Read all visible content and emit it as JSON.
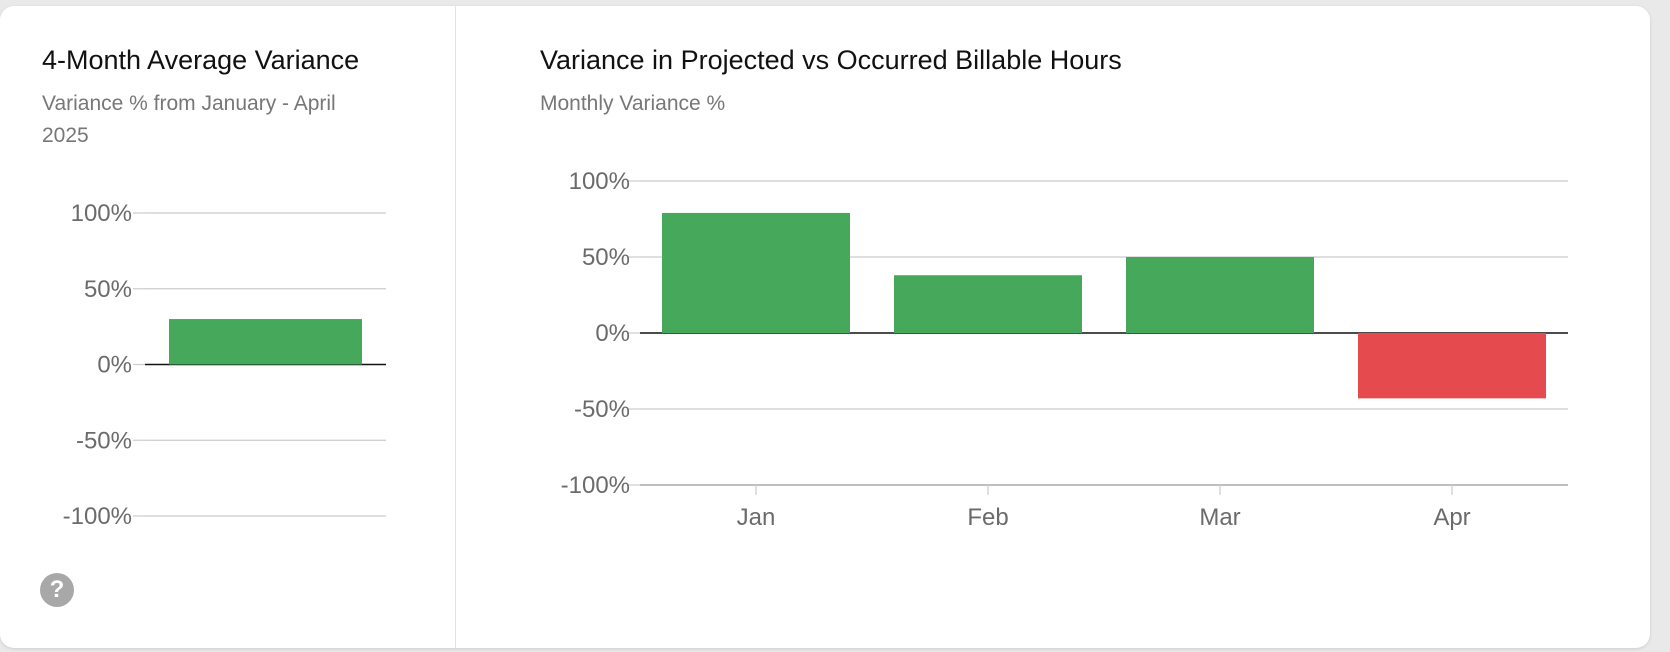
{
  "left_panel": {
    "title": "4-Month Average Variance",
    "subtitle": "Variance % from January - April 2025"
  },
  "right_panel": {
    "title": "Variance in Projected vs Occurred Billable Hours",
    "subtitle": "Monthly Variance %"
  },
  "help": {
    "icon": "question-circle-icon",
    "glyph": "?"
  },
  "colors": {
    "positive": "#46a85a",
    "negative": "#e54b4e",
    "grid": "#cccccc",
    "zero_line": "#111111",
    "axis": "#999999"
  },
  "chart_data": [
    {
      "id": "average",
      "type": "bar",
      "title": "4-Month Average Variance",
      "subtitle": "Variance % from January - April 2025",
      "categories": [
        ""
      ],
      "values": [
        30
      ],
      "ylim": [
        -100,
        100
      ],
      "yticks": [
        100,
        50,
        0,
        -50,
        -100
      ],
      "ytick_labels": [
        "100%",
        "50%",
        "0%",
        "-50%",
        "-100%"
      ],
      "grid": true
    },
    {
      "id": "monthly",
      "type": "bar",
      "title": "Variance in Projected vs Occurred Billable Hours",
      "subtitle": "Monthly Variance %",
      "categories": [
        "Jan",
        "Feb",
        "Mar",
        "Apr"
      ],
      "values": [
        79,
        38,
        50,
        -43
      ],
      "ylim": [
        -100,
        100
      ],
      "yticks": [
        100,
        50,
        0,
        -50,
        -100
      ],
      "ytick_labels": [
        "100%",
        "50%",
        "0%",
        "-50%",
        "-100%"
      ],
      "grid": true
    }
  ]
}
